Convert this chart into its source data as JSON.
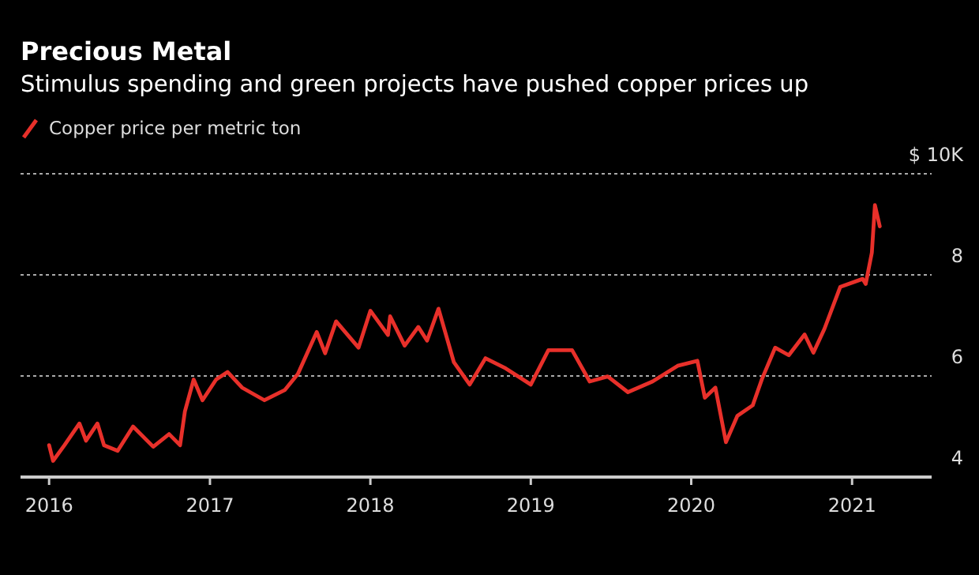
{
  "chart_data": {
    "type": "line",
    "title": "Precious Metal",
    "subtitle": "Stimulus spending and green projects have pushed copper prices up",
    "x": [
      "2016-01-01",
      "2016-01-10",
      "2016-02-05",
      "2016-03-10",
      "2016-03-25",
      "2016-04-20",
      "2016-05-05",
      "2016-06-05",
      "2016-07-10",
      "2016-08-25",
      "2016-09-30",
      "2016-10-25",
      "2016-11-05",
      "2016-11-25",
      "2016-12-15",
      "2017-01-15",
      "2017-02-10",
      "2017-03-15",
      "2017-05-05",
      "2017-06-20",
      "2017-07-20",
      "2017-09-01",
      "2017-09-20",
      "2017-10-15",
      "2017-12-05",
      "2018-01-01",
      "2018-02-10",
      "2018-02-15",
      "2018-03-20",
      "2018-04-20",
      "2018-05-10",
      "2018-06-05",
      "2018-07-10",
      "2018-08-15",
      "2018-09-20",
      "2018-11-05",
      "2019-01-01",
      "2019-02-10",
      "2019-04-05",
      "2019-05-15",
      "2019-06-25",
      "2019-08-10",
      "2019-10-05",
      "2019-12-01",
      "2020-01-15",
      "2020-02-01",
      "2020-02-25",
      "2020-03-20",
      "2020-04-15",
      "2020-05-20",
      "2020-06-10",
      "2020-07-10",
      "2020-08-10",
      "2020-09-15",
      "2020-10-05",
      "2020-10-30",
      "2020-12-05",
      "2021-01-25",
      "2021-02-01",
      "2021-02-15",
      "2021-02-22",
      "2021-03-05"
    ],
    "series": [
      {
        "name": "Copper price per metric ton",
        "color": "#e8302a",
        "values": [
          4.63,
          4.32,
          4.63,
          5.06,
          4.72,
          5.06,
          4.63,
          4.52,
          5.0,
          4.6,
          4.85,
          4.63,
          5.3,
          5.93,
          5.52,
          5.93,
          6.08,
          5.77,
          5.52,
          5.72,
          6.04,
          6.87,
          6.45,
          7.08,
          6.56,
          7.29,
          6.81,
          7.18,
          6.6,
          6.97,
          6.7,
          7.33,
          6.27,
          5.83,
          6.35,
          6.15,
          5.83,
          6.51,
          6.51,
          5.89,
          5.99,
          5.68,
          5.89,
          6.2,
          6.3,
          5.57,
          5.77,
          4.69,
          5.21,
          5.42,
          5.94,
          6.56,
          6.41,
          6.82,
          6.46,
          6.93,
          7.76,
          7.92,
          7.82,
          8.44,
          9.38,
          8.96
        ]
      }
    ],
    "xlim": [
      "2015-10-28",
      "2021-07-01"
    ],
    "xticks": [
      {
        "value": "2016-01-01",
        "label": "2016"
      },
      {
        "value": "2017-01-01",
        "label": "2017"
      },
      {
        "value": "2018-01-01",
        "label": "2018"
      },
      {
        "value": "2019-01-01",
        "label": "2019"
      },
      {
        "value": "2020-01-01",
        "label": "2020"
      },
      {
        "value": "2021-01-01",
        "label": "2021"
      }
    ],
    "ylim": [
      4,
      10
    ],
    "yticks": [
      4,
      6,
      8,
      {
        "value": 10,
        "label": "$ 10K"
      }
    ],
    "grid": "y",
    "legend": "top left",
    "marker": "none",
    "line_style": "solid"
  }
}
